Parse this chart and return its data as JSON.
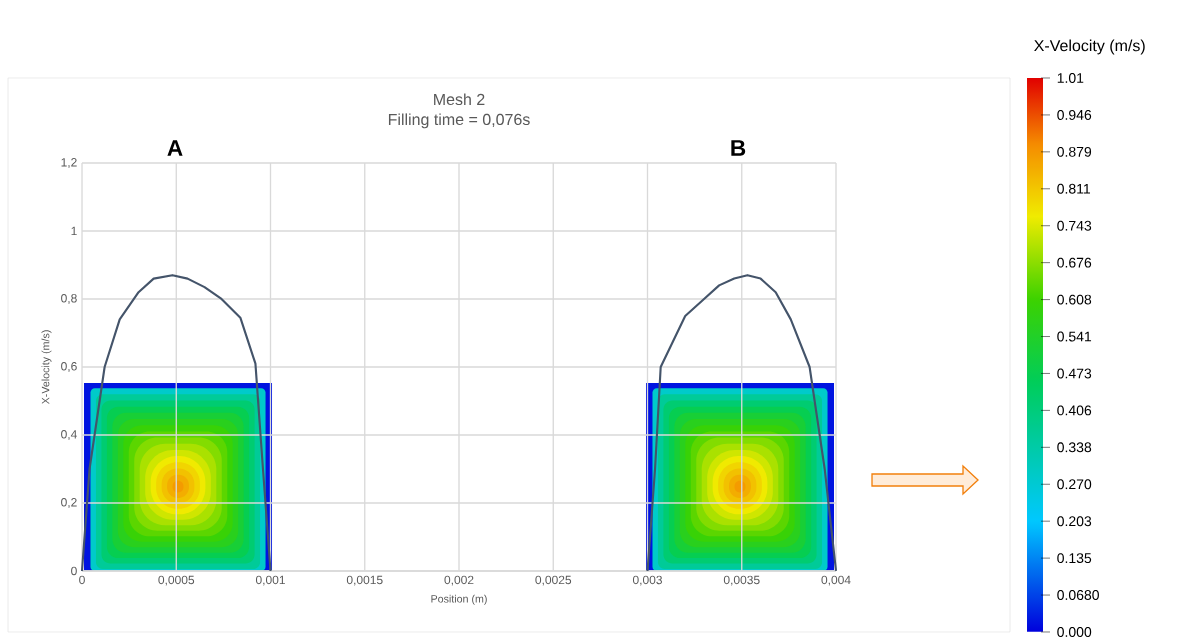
{
  "chart_data": [
    {
      "type": "line",
      "title": "Mesh 2",
      "subtitle": "Filling time = 0,076s",
      "xlabel": "Position (m)",
      "ylabel": "X-Velocity (m/s)",
      "annotations": [
        "A",
        "B"
      ],
      "xlim": [
        0,
        0.004
      ],
      "ylim": [
        0,
        1.2
      ],
      "xticks": [
        0,
        {
          "value": 0.0005,
          "label": "0,0005"
        },
        {
          "value": 0.001,
          "label": "0,001"
        },
        {
          "value": 0.0015,
          "label": "0,0015"
        },
        {
          "value": 0.002,
          "label": "0,002"
        },
        {
          "value": 0.0025,
          "label": "0,0025"
        },
        {
          "value": 0.003,
          "label": "0,003"
        },
        {
          "value": 0.0035,
          "label": "0,0035"
        },
        {
          "value": 0.004,
          "label": "0,004"
        }
      ],
      "yticks": [
        0,
        {
          "value": 0.2,
          "label": "0,2"
        },
        {
          "value": 0.4,
          "label": "0,4"
        },
        {
          "value": 0.6,
          "label": "0,6"
        },
        {
          "value": 0.8,
          "label": "0,8"
        },
        1,
        {
          "value": 1.2,
          "label": "1,2"
        }
      ],
      "grid": true,
      "series": [
        {
          "color": "#44546a",
          "x": [
            0,
            4e-05,
            0.00012,
            0.0002,
            0.0003,
            0.00038,
            0.00048,
            0.00056,
            0.00065,
            0.00074,
            0.00084,
            0.00092,
            0.00096,
            0.001
          ],
          "values": [
            0,
            0.3,
            0.6,
            0.74,
            0.82,
            0.86,
            0.87,
            0.86,
            0.835,
            0.8,
            0.745,
            0.61,
            0.3,
            0
          ]
        },
        {
          "color": "#44546a",
          "x": [
            0.003,
            0.00304,
            0.00307,
            0.0032,
            0.0033,
            0.00338,
            0.00346,
            0.00353,
            0.0036,
            0.00368,
            0.00376,
            0.00386,
            0.00394,
            0.00398,
            0.004
          ],
          "values": [
            0,
            0.3,
            0.6,
            0.75,
            0.8,
            0.84,
            0.86,
            0.87,
            0.86,
            0.82,
            0.74,
            0.6,
            0.3,
            0.1,
            0
          ]
        }
      ]
    },
    {
      "type": "other",
      "title": "X-Velocity (m/s)",
      "annotations": [
        "1.01",
        "0.946",
        "0.879",
        "0.811",
        "0.743",
        "0.676",
        "0.608",
        "0.541",
        "0.473",
        "0.406",
        "0.338",
        "0.270",
        "0.203",
        "0.135",
        "0.0680",
        "0.000"
      ]
    }
  ]
}
